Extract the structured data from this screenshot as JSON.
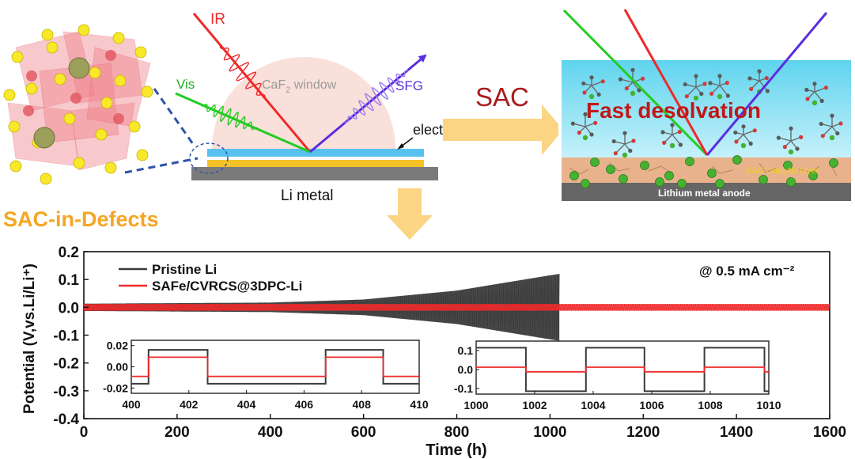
{
  "panels": {
    "defect": {
      "label": "SAC-in-Defects"
    },
    "sfg": {
      "ir": "IR",
      "vis": "Vis",
      "sfg": "SFG",
      "window_main": "CaF",
      "window_sub": "2",
      "window_rest": " window",
      "electrolyte": "electrolyte",
      "li_metal": "Li metal"
    },
    "arrow_label": "SAC",
    "interface": {
      "title": "Fast desolvation",
      "layer": "SAC catalytic layer",
      "anode": "Lithium metal anode"
    }
  },
  "colors": {
    "ir": "#ee2a2a",
    "vis": "#22cc22",
    "sfg": "#5a2ee0",
    "pristine": "#3a3a3a",
    "saf": "#ee2a2a",
    "title_red": "#c01818",
    "orange": "#f5a623",
    "anode": "#666666"
  },
  "chart_data": {
    "type": "line",
    "xlabel": "Time (h)",
    "ylabel": "Potential (V,vs.Li/Li⁺)",
    "xlim": [
      0,
      1600
    ],
    "ylim": [
      -0.4,
      0.2
    ],
    "xticks": [
      0,
      200,
      400,
      600,
      800,
      1000,
      1200,
      1400,
      1600
    ],
    "yticks": [
      0.2,
      0.1,
      0.0,
      -0.1,
      -0.2,
      -0.3,
      -0.4
    ],
    "annotation": "@ 0.5 mA cm⁻²",
    "legend_position": "top-left",
    "series": [
      {
        "name": "Pristine Li",
        "x_end": 1020,
        "amplitude_envelope": [
          [
            0,
            0.013
          ],
          [
            400,
            0.017
          ],
          [
            600,
            0.028
          ],
          [
            800,
            0.06
          ],
          [
            1000,
            0.115
          ],
          [
            1020,
            0.12
          ]
        ]
      },
      {
        "name": "SAFe/CVRCS@3DPC-Li",
        "x_end": 1600,
        "amplitude_envelope": [
          [
            0,
            0.012
          ],
          [
            1600,
            0.012
          ]
        ]
      }
    ],
    "insets": [
      {
        "xlim": [
          400,
          410
        ],
        "ylim": [
          -0.025,
          0.025
        ],
        "xticks": [
          400,
          402,
          404,
          406,
          408,
          410
        ],
        "yticks": [
          "0.02",
          "0.00",
          "-0.02"
        ],
        "pristine_amplitude": 0.016,
        "saf_amplitude": 0.009,
        "switch_times": [
          400.6,
          402.65,
          406.75,
          408.75
        ],
        "first_level": -1
      },
      {
        "xlim": [
          1000,
          1010
        ],
        "ylim": [
          -0.13,
          0.15
        ],
        "xticks": [
          1000,
          1002,
          1004,
          1006,
          1008,
          1010
        ],
        "yticks": [
          "0.1",
          "0.0",
          "-0.1"
        ],
        "pristine_amplitude": 0.115,
        "saf_amplitude": 0.012,
        "switch_times": [
          1001.7,
          1003.75,
          1005.75,
          1007.8,
          1009.85
        ],
        "first_level": 1
      }
    ]
  }
}
